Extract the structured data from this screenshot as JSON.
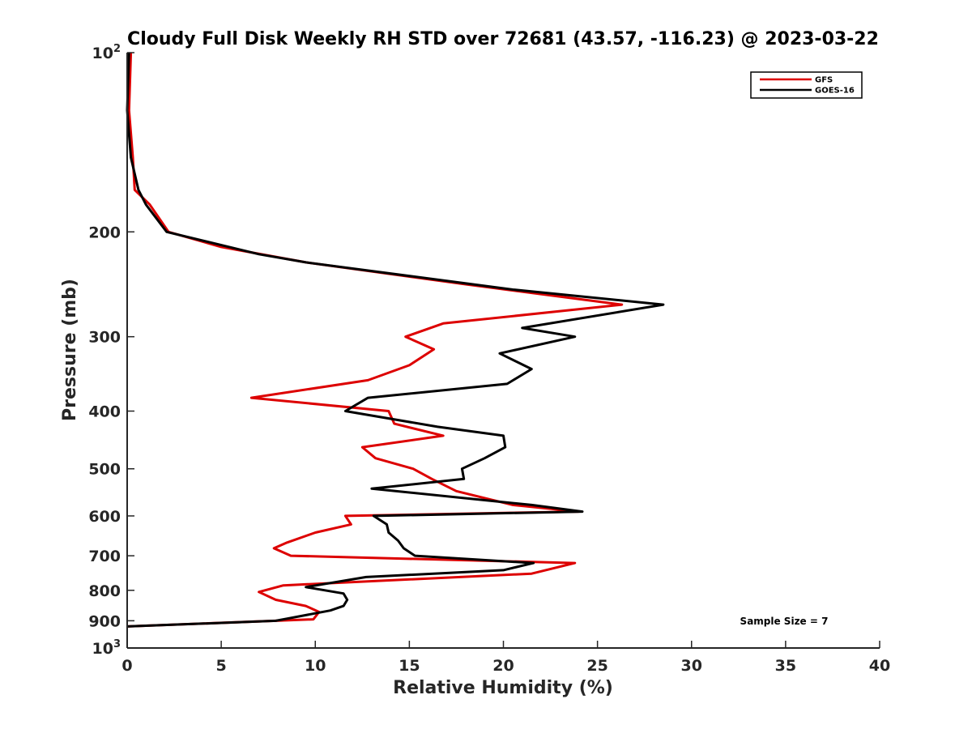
{
  "chart_data": {
    "type": "line",
    "title": "Cloudy Full Disk Weekly RH STD over 72681 (43.57, -116.23) @ 2023-03-22",
    "xlabel": "Relative Humidity (%)",
    "ylabel": "Pressure (mb)",
    "xlim": [
      0,
      40
    ],
    "ylim": [
      100,
      1000
    ],
    "y_scale": "log",
    "y_reversed": true,
    "x_ticks": [
      "0",
      "5",
      "10",
      "15",
      "20",
      "25",
      "30",
      "35",
      "40"
    ],
    "y_ticks": [
      {
        "value": 100,
        "label": "10",
        "sup": "2"
      },
      {
        "value": 200,
        "label": "200",
        "sup": ""
      },
      {
        "value": 300,
        "label": "300",
        "sup": ""
      },
      {
        "value": 400,
        "label": "400",
        "sup": ""
      },
      {
        "value": 500,
        "label": "500",
        "sup": ""
      },
      {
        "value": 600,
        "label": "600",
        "sup": ""
      },
      {
        "value": 700,
        "label": "700",
        "sup": ""
      },
      {
        "value": 800,
        "label": "800",
        "sup": ""
      },
      {
        "value": 900,
        "label": "900",
        "sup": ""
      },
      {
        "value": 1000,
        "label": "10",
        "sup": "3"
      }
    ],
    "grid": false,
    "legend_position": "top-right",
    "annotation": "Sample Size = 7",
    "series": [
      {
        "name": "GFS",
        "color": "#dd0000",
        "points": [
          [
            0.2,
            100
          ],
          [
            0.1,
            125
          ],
          [
            0.3,
            150
          ],
          [
            0.4,
            170
          ],
          [
            1.2,
            180
          ],
          [
            2.2,
            200
          ],
          [
            5.0,
            212
          ],
          [
            9.5,
            225
          ],
          [
            18.0,
            245
          ],
          [
            26.3,
            265
          ],
          [
            16.8,
            285
          ],
          [
            14.8,
            300
          ],
          [
            16.3,
            315
          ],
          [
            15.0,
            335
          ],
          [
            12.8,
            355
          ],
          [
            6.6,
            380
          ],
          [
            13.9,
            400
          ],
          [
            14.2,
            420
          ],
          [
            16.8,
            440
          ],
          [
            12.5,
            460
          ],
          [
            13.2,
            480
          ],
          [
            15.2,
            500
          ],
          [
            16.2,
            520
          ],
          [
            17.5,
            545
          ],
          [
            20.5,
            575
          ],
          [
            24.0,
            590
          ],
          [
            11.6,
            600
          ],
          [
            11.9,
            620
          ],
          [
            10.0,
            640
          ],
          [
            8.5,
            665
          ],
          [
            7.8,
            680
          ],
          [
            8.7,
            700
          ],
          [
            23.8,
            720
          ],
          [
            21.5,
            750
          ],
          [
            8.3,
            785
          ],
          [
            7.0,
            805
          ],
          [
            7.9,
            830
          ],
          [
            9.5,
            850
          ],
          [
            10.2,
            870
          ],
          [
            9.9,
            895
          ],
          [
            0.0,
            920
          ]
        ]
      },
      {
        "name": "GOES-16",
        "color": "#000000",
        "points": [
          [
            0.1,
            100
          ],
          [
            0.0,
            125
          ],
          [
            0.2,
            150
          ],
          [
            0.6,
            170
          ],
          [
            1.0,
            180
          ],
          [
            2.1,
            200
          ],
          [
            7.0,
            218
          ],
          [
            9.5,
            225
          ],
          [
            20.5,
            250
          ],
          [
            28.5,
            265
          ],
          [
            21.0,
            290
          ],
          [
            23.8,
            300
          ],
          [
            19.8,
            320
          ],
          [
            21.5,
            340
          ],
          [
            20.2,
            360
          ],
          [
            12.8,
            380
          ],
          [
            11.6,
            400
          ],
          [
            16.5,
            425
          ],
          [
            20.0,
            440
          ],
          [
            20.1,
            460
          ],
          [
            19.0,
            480
          ],
          [
            17.8,
            500
          ],
          [
            17.9,
            520
          ],
          [
            13.0,
            540
          ],
          [
            21.5,
            575
          ],
          [
            24.2,
            590
          ],
          [
            13.1,
            600
          ],
          [
            13.8,
            620
          ],
          [
            13.9,
            640
          ],
          [
            14.4,
            660
          ],
          [
            14.7,
            680
          ],
          [
            15.3,
            700
          ],
          [
            21.6,
            720
          ],
          [
            20.0,
            740
          ],
          [
            12.7,
            760
          ],
          [
            9.5,
            790
          ],
          [
            11.5,
            810
          ],
          [
            11.7,
            830
          ],
          [
            11.5,
            850
          ],
          [
            10.8,
            865
          ],
          [
            7.9,
            900
          ],
          [
            0.0,
            920
          ]
        ]
      }
    ]
  }
}
